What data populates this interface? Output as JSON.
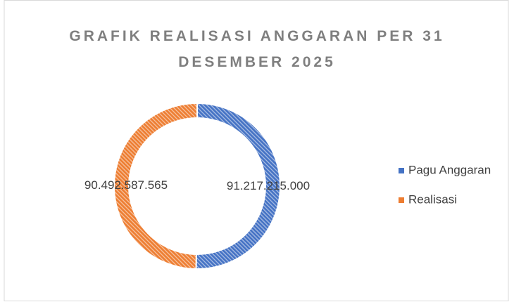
{
  "chart_data": {
    "type": "pie",
    "donut": true,
    "title": "GRAFIK REALISASI ANGGARAN PER 31 DESEMBER 2025",
    "categories": [
      "Pagu Anggaran",
      "Realisasi"
    ],
    "values": [
      91217215000,
      90492587565
    ],
    "value_labels": [
      "91.217.215.000",
      "90.492.587.565"
    ],
    "colors": [
      "#4472c4",
      "#ed7d31"
    ],
    "pattern": "hatched",
    "legend": "right"
  }
}
